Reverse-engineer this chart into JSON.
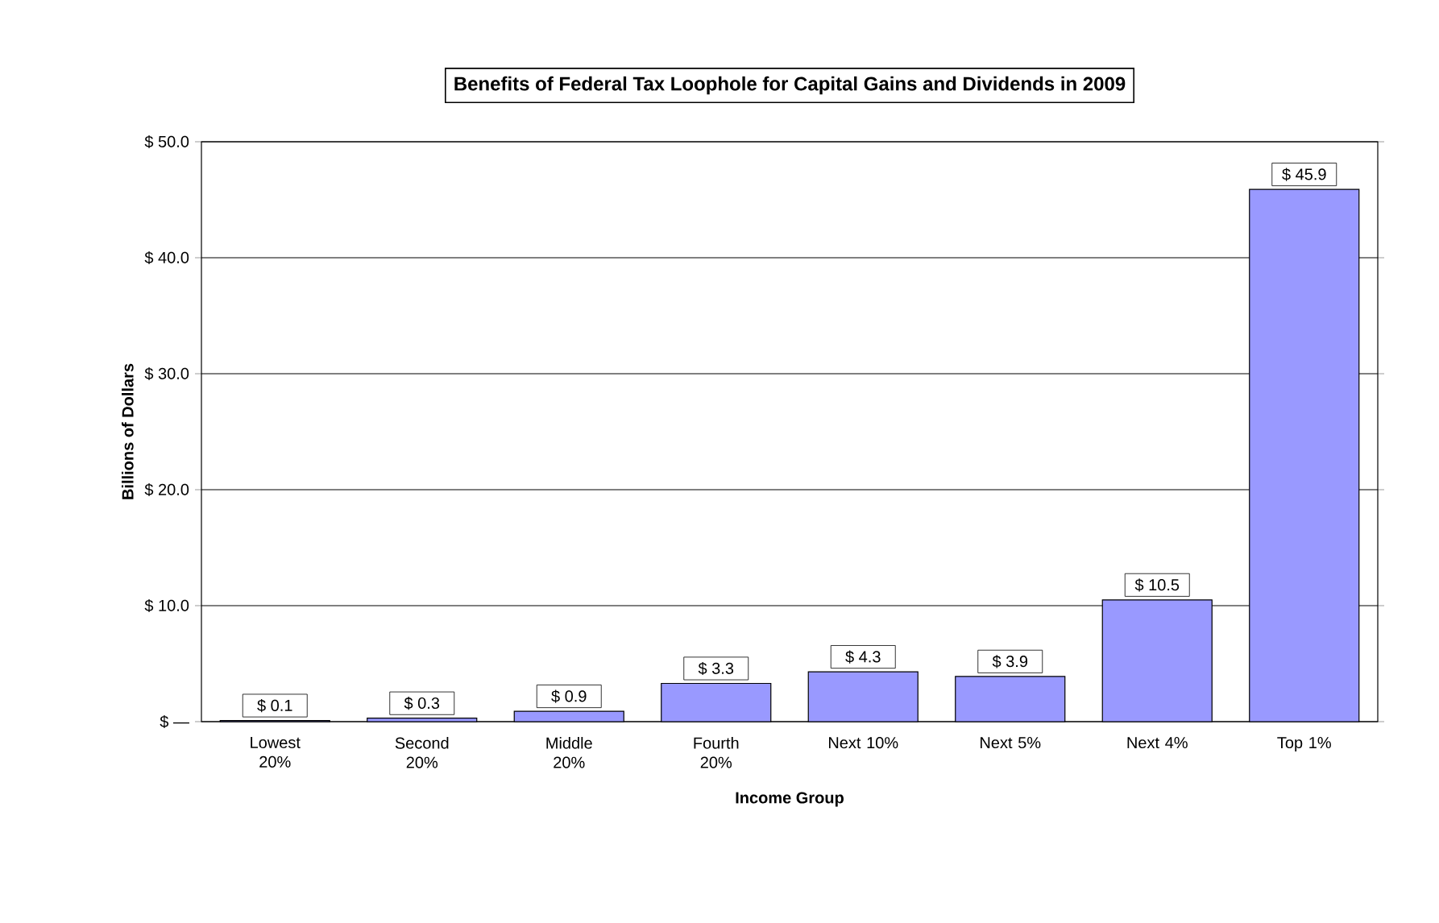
{
  "chart_data": {
    "type": "bar",
    "title": "Benefits of Federal Tax Loophole for Capital Gains and Dividends in 2009",
    "xlabel": "Income Group",
    "ylabel": "Billions of Dollars",
    "categories": [
      "Lowest 20%",
      "Second 20%",
      "Middle 20%",
      "Fourth 20%",
      "Next 10%",
      "Next 5%",
      "Next 4%",
      "Top 1%"
    ],
    "values": [
      0.1,
      0.3,
      0.9,
      3.3,
      4.3,
      3.9,
      10.5,
      45.9
    ],
    "value_labels": [
      "$ 0.1",
      "$ 0.3",
      "$ 0.9",
      "$ 3.3",
      "$ 4.3",
      "$ 3.9",
      "$ 10.5",
      "$ 45.9"
    ],
    "color": "#9999ff",
    "ylim": [
      0,
      50
    ],
    "yticks": [
      {
        "value": 0,
        "label": "$ —"
      },
      {
        "value": 10,
        "label": "$ 10.0"
      },
      {
        "value": 20,
        "label": "$ 20.0"
      },
      {
        "value": 30,
        "label": "$ 30.0"
      },
      {
        "value": 40,
        "label": "$ 40.0"
      },
      {
        "value": 50,
        "label": "$ 50.0"
      }
    ],
    "grid": "y"
  }
}
